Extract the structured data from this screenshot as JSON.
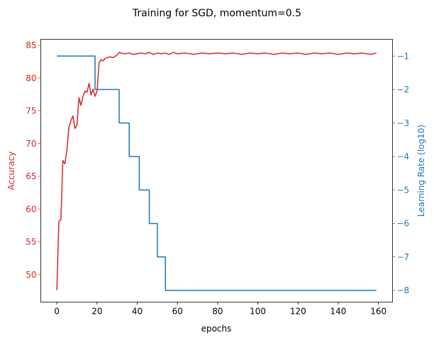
{
  "chart_data": {
    "type": "line",
    "title": "Training for SGD, momentum=0.5",
    "xlabel": "epochs",
    "ylabel_left": "Accuracy",
    "ylabel_right": "Learning Rate (log10)",
    "xlim": [
      -8,
      167
    ],
    "ylim_left": [
      45.8,
      85.9
    ],
    "ylim_right": [
      -8.35,
      -0.5
    ],
    "x_ticks": [
      0,
      20,
      40,
      60,
      80,
      100,
      120,
      140,
      160
    ],
    "y_ticks_left": [
      50,
      55,
      60,
      65,
      70,
      75,
      80,
      85
    ],
    "y_ticks_right": [
      -1,
      -2,
      -3,
      -4,
      -5,
      -6,
      -7,
      -8
    ],
    "grid": false,
    "colors": {
      "left": "#d62728",
      "right": "#1f77b4",
      "axis": "#000000"
    },
    "series": [
      {
        "axis": "left",
        "color": "#d62728",
        "x": [
          0,
          1,
          2,
          3,
          4,
          5,
          6,
          7,
          8,
          9,
          10,
          11,
          12,
          13,
          14,
          15,
          16,
          17,
          18,
          19,
          20,
          21,
          22,
          23,
          24,
          25,
          26,
          27,
          28,
          29,
          30,
          31,
          32,
          34,
          36,
          38,
          40,
          42,
          44,
          46,
          48,
          50,
          52,
          54,
          56,
          58,
          60,
          64,
          68,
          72,
          76,
          80,
          84,
          88,
          92,
          96,
          100,
          104,
          108,
          112,
          116,
          120,
          124,
          128,
          132,
          136,
          140,
          144,
          148,
          152,
          156,
          159
        ],
        "y": [
          47.6,
          58.1,
          58.4,
          67.4,
          66.9,
          69.0,
          72.5,
          73.5,
          74.2,
          72.3,
          72.8,
          77.0,
          75.8,
          77.2,
          78.0,
          77.8,
          79.2,
          77.4,
          78.3,
          77.2,
          78.0,
          82.3,
          82.8,
          82.6,
          83.0,
          83.1,
          83.2,
          83.2,
          83.1,
          83.3,
          83.5,
          83.9,
          83.8,
          83.7,
          83.8,
          83.6,
          83.7,
          83.8,
          83.7,
          83.9,
          83.6,
          83.8,
          83.7,
          83.8,
          83.6,
          83.9,
          83.7,
          83.8,
          83.6,
          83.8,
          83.7,
          83.8,
          83.7,
          83.8,
          83.6,
          83.8,
          83.7,
          83.8,
          83.6,
          83.8,
          83.7,
          83.8,
          83.6,
          83.8,
          83.7,
          83.8,
          83.6,
          83.8,
          83.7,
          83.8,
          83.6,
          83.8
        ]
      },
      {
        "axis": "right",
        "color": "#1f77b4",
        "step": true,
        "x": [
          0,
          19,
          19,
          31,
          31,
          36,
          36,
          41,
          41,
          46,
          46,
          50,
          50,
          54,
          54,
          159
        ],
        "y": [
          -1,
          -1,
          -2,
          -2,
          -3,
          -3,
          -4,
          -4,
          -5,
          -5,
          -6,
          -6,
          -7,
          -7,
          -8,
          -8
        ]
      }
    ]
  }
}
